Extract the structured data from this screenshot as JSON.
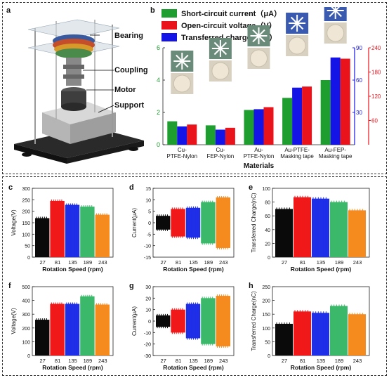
{
  "panels": {
    "a": {
      "label": "a",
      "parts": [
        "Bearing",
        "Coupling",
        "Motor",
        "Support"
      ]
    },
    "b": {
      "label": "b"
    }
  },
  "colors": {
    "green": "#1e9e2e",
    "red": "#e8131b",
    "blue": "#1414e6",
    "black": "#0a0a0a",
    "red2": "#f01818",
    "blue2": "#1f2fe8",
    "green2": "#3cb86a",
    "orange": "#f58a1f"
  },
  "chart_data": [
    {
      "id": "b",
      "type": "bar",
      "xlabel": "Materials",
      "categories": [
        "Cu-\nPTFE-Nylon",
        "Cu-\nFEP-Nylon",
        "Au-\nPTFE-Nylon",
        "Au-PTFE-\nMasking tape",
        "Au-FEP-\nMasking tape"
      ],
      "series": [
        {
          "name": "Short-circuit current（μA）",
          "color": "#1e9e2e",
          "axis": "left",
          "values": [
            1.45,
            1.2,
            2.15,
            2.9,
            4.0
          ]
        },
        {
          "name": "Open-circuit voltage（V）",
          "color": "#e8131b",
          "axis": "right_red",
          "values": [
            50,
            42,
            93,
            144,
            213
          ]
        },
        {
          "name": "Transferred charge（nC）",
          "color": "#1414e6",
          "axis": "right_blue",
          "values": [
            17,
            14,
            33,
            53,
            81
          ]
        }
      ],
      "left_axis": {
        "ticks": [
          "0",
          "2",
          "4",
          "6"
        ],
        "ylim": [
          0,
          6
        ]
      },
      "right_blue_axis": {
        "ticks": [
          "30",
          "60",
          "90"
        ],
        "ylim": [
          0,
          90
        ]
      },
      "right_red_axis": {
        "ticks": [
          "60",
          "120",
          "180",
          "240"
        ],
        "ylim": [
          0,
          240
        ]
      }
    },
    {
      "id": "c",
      "type": "bar",
      "label": "c",
      "ylabel": "Voltage(V)",
      "xlabel": "Rotation Speed (rpm)",
      "yticks": [
        "0",
        "50",
        "100",
        "150",
        "200",
        "250",
        "300"
      ],
      "ylim": [
        0,
        300
      ],
      "categories": [
        "27",
        "81",
        "135",
        "189",
        "243"
      ],
      "values": [
        170,
        245,
        228,
        220,
        185
      ]
    },
    {
      "id": "d",
      "type": "bar",
      "label": "d",
      "ylabel": "Current(μA)",
      "xlabel": "Rotation Speed (rpm)",
      "yticks": [
        "-15",
        "-10",
        "-5",
        "0",
        "5",
        "10",
        "15"
      ],
      "ylim": [
        -15,
        15
      ],
      "symmetric": true,
      "categories": [
        "27",
        "81",
        "135",
        "189",
        "243"
      ],
      "values": [
        3,
        6,
        6.5,
        9,
        11
      ]
    },
    {
      "id": "e",
      "type": "bar",
      "label": "e",
      "ylabel": "Transferred Charge(nC)",
      "xlabel": "Rotation Speed (rpm)",
      "yticks": [
        "0",
        "20",
        "40",
        "60",
        "80",
        "100"
      ],
      "ylim": [
        0,
        100
      ],
      "categories": [
        "27",
        "81",
        "135",
        "189",
        "243"
      ],
      "values": [
        70,
        87,
        85,
        80,
        68
      ]
    },
    {
      "id": "f",
      "type": "bar",
      "label": "f",
      "ylabel": "Voltage(V)",
      "xlabel": "Rotation Speed (rpm)",
      "yticks": [
        "0",
        "100",
        "200",
        "300",
        "400",
        "500"
      ],
      "ylim": [
        0,
        500
      ],
      "categories": [
        "27",
        "81",
        "135",
        "189",
        "243"
      ],
      "values": [
        260,
        375,
        375,
        430,
        370
      ]
    },
    {
      "id": "g",
      "type": "bar",
      "label": "g",
      "ylabel": "Current(μA)",
      "xlabel": "Rotation Speed (rpm)",
      "yticks": [
        "-30",
        "-20",
        "-10",
        "0",
        "10",
        "20",
        "30"
      ],
      "ylim": [
        -30,
        30
      ],
      "symmetric": true,
      "categories": [
        "27",
        "81",
        "135",
        "189",
        "243"
      ],
      "values": [
        5,
        10,
        15,
        20,
        22
      ]
    },
    {
      "id": "h",
      "type": "bar",
      "label": "h",
      "ylabel": "Transferred Charge(nC)",
      "xlabel": "Rotation Speed (rpm)",
      "yticks": [
        "0",
        "50",
        "100",
        "150",
        "200",
        "250"
      ],
      "ylim": [
        0,
        250
      ],
      "categories": [
        "27",
        "81",
        "135",
        "189",
        "243"
      ],
      "values": [
        115,
        160,
        155,
        180,
        150
      ]
    }
  ]
}
